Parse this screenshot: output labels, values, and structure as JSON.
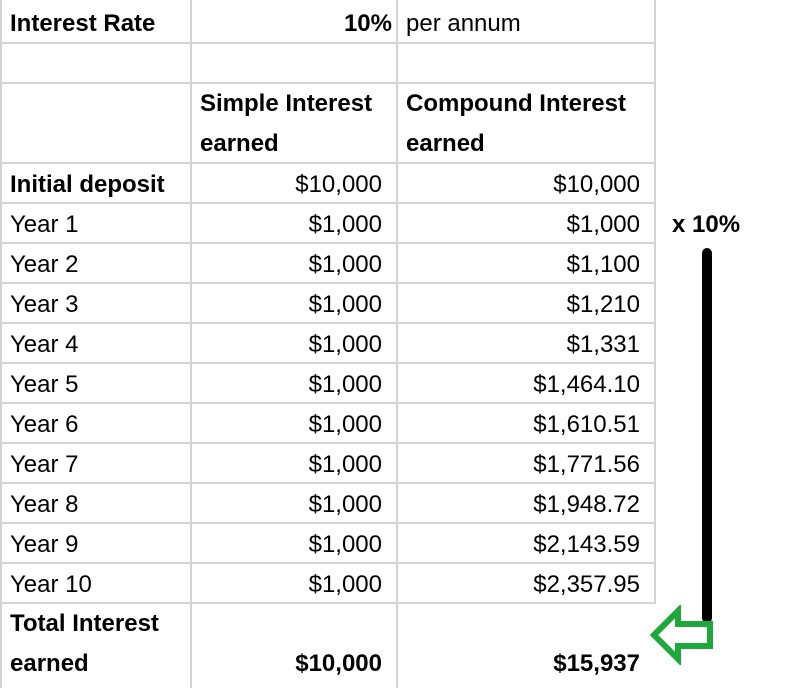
{
  "header": {
    "rate_label": "Interest Rate",
    "rate_value": "10%",
    "rate_unit": "per annum"
  },
  "columns": {
    "simple": [
      "Simple Interest",
      "earned"
    ],
    "compound": [
      "Compound Interest",
      "earned"
    ]
  },
  "rows": [
    {
      "label": "Initial deposit",
      "simple": "$10,000",
      "compound": "$10,000"
    },
    {
      "label": "Year 1",
      "simple": "$1,000",
      "compound": "$1,000"
    },
    {
      "label": "Year 2",
      "simple": "$1,000",
      "compound": "$1,100"
    },
    {
      "label": "Year 3",
      "simple": "$1,000",
      "compound": "$1,210"
    },
    {
      "label": "Year 4",
      "simple": "$1,000",
      "compound": "$1,331"
    },
    {
      "label": "Year 5",
      "simple": "$1,000",
      "compound": "$1,464.10"
    },
    {
      "label": "Year 6",
      "simple": "$1,000",
      "compound": "$1,610.51"
    },
    {
      "label": "Year 7",
      "simple": "$1,000",
      "compound": "$1,771.56"
    },
    {
      "label": "Year 8",
      "simple": "$1,000",
      "compound": "$1,948.72"
    },
    {
      "label": "Year 9",
      "simple": "$1,000",
      "compound": "$2,143.59"
    },
    {
      "label": "Year 10",
      "simple": "$1,000",
      "compound": "$2,357.95"
    }
  ],
  "total": {
    "label": [
      "Total Interest",
      "earned"
    ],
    "simple": "$10,000",
    "compound": "$15,937"
  },
  "annotation": {
    "multiplier": "x 10%",
    "arrow_icon": "left-arrow-icon",
    "arrow_color": "#1ea83c"
  }
}
